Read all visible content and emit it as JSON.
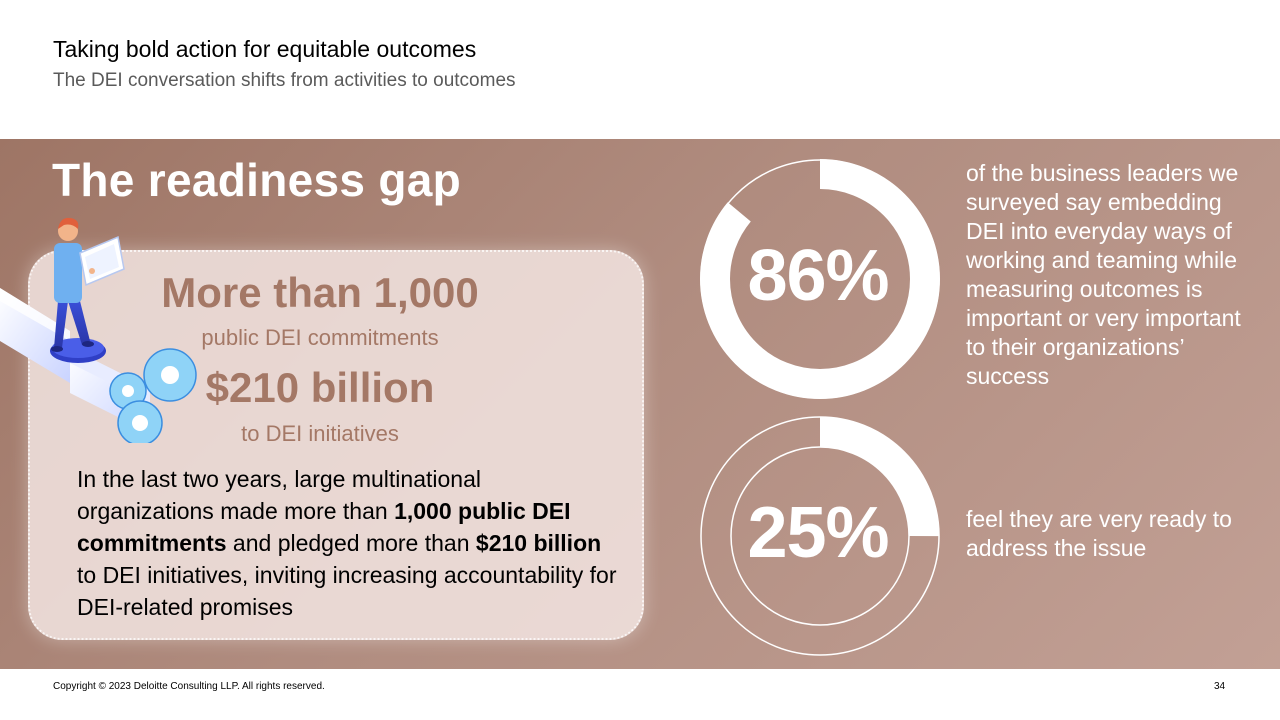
{
  "header": {
    "title": "Taking bold action for equitable outcomes",
    "subtitle": "The DEI conversation shifts from activities to outcomes"
  },
  "section": {
    "title": "The readiness gap"
  },
  "card": {
    "stat1_value": "More than 1,000",
    "stat1_label": "public DEI commitments",
    "stat2_value": "$210 billion",
    "stat2_label": "to DEI initiatives",
    "body_1": "In the last two years, large multinational organizations made more than ",
    "body_bold_1": "1,000 public DEI commitments",
    "body_2": " and pledged more than ",
    "body_bold_2": "$210 billion",
    "body_3": " to DEI initiatives, inviting increasing accountability for DEI-related promises"
  },
  "donuts": [
    {
      "label": "86%",
      "value": 86,
      "description": "of the business leaders we surveyed say embedding DEI into everyday ways of working and teaming while measuring outcomes is important or very important to their organizations’ success"
    },
    {
      "label": "25%",
      "value": 25,
      "description": "feel they are very ready to address the issue"
    }
  ],
  "footer": {
    "copyright": "Copyright © 2023 Deloitte Consulting LLP. All rights reserved.",
    "page_number": "34"
  },
  "colors": {
    "accent": "#a47866",
    "band_start": "#9e7565",
    "band_end": "#c2a095"
  },
  "icons": {
    "illustration": "person-with-gears-illustration"
  }
}
